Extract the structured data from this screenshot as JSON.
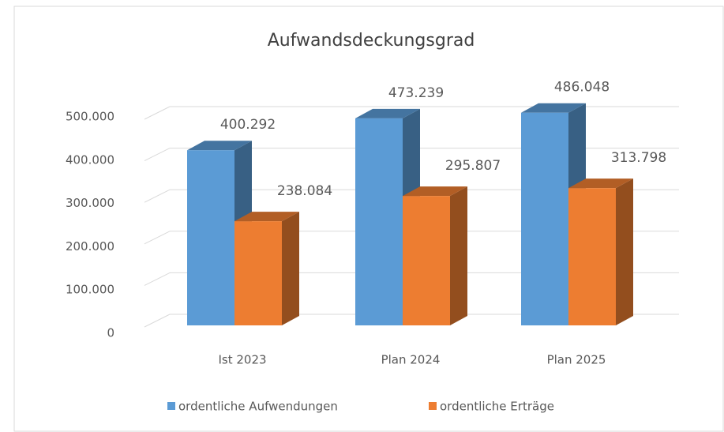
{
  "chart_data": {
    "type": "bar3d",
    "title": "Aufwandsdeckungsgrad",
    "categories": [
      "Ist 2023",
      "Plan 2024",
      "Plan 2025"
    ],
    "series": [
      {
        "name": "ordentliche Aufwendungen",
        "color": "#5b9bd5",
        "values": [
          400292,
          473239,
          486048
        ],
        "value_labels": [
          "400.292",
          "473.239",
          "486.048"
        ]
      },
      {
        "name": "ordentliche Erträge",
        "color": "#ed7d31",
        "values": [
          238084,
          295807,
          313798
        ],
        "value_labels": [
          "238.084",
          "295.807",
          "313.798"
        ]
      }
    ],
    "ylim": [
      0,
      500000
    ],
    "yticks": [
      0,
      {
        "value": 100000,
        "label": "100.000"
      },
      {
        "value": 200000,
        "label": "200.000"
      },
      {
        "value": 300000,
        "label": "300.000"
      },
      {
        "value": 400000,
        "label": "400.000"
      },
      {
        "value": 500000,
        "label": "500.000"
      }
    ],
    "grid": true,
    "legend": "bottom"
  }
}
